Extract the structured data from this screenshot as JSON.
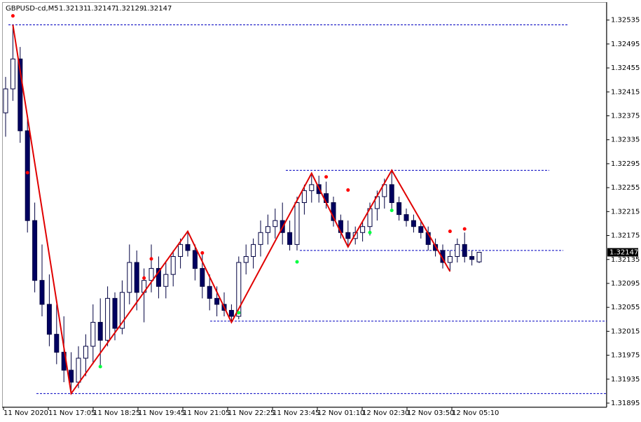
{
  "chart_data": {
    "type": "candlestick",
    "title": "GBPUSD-cd,M5",
    "ylim": [
      1.31888,
      1.32565
    ],
    "yticks": [
      1.32535,
      1.32495,
      1.32455,
      1.32415,
      1.32375,
      1.32335,
      1.32295,
      1.32255,
      1.32215,
      1.32175,
      1.32135,
      1.32095,
      1.32055,
      1.32015,
      1.31975,
      1.31935,
      1.31895
    ],
    "x_labels": [
      "11 Nov 2020",
      "11 Nov 17:05",
      "11 Nov 18:25",
      "11 Nov 19:45",
      "11 Nov 21:05",
      "11 Nov 22:25",
      "11 Nov 23:45",
      "12 Nov 01:10",
      "12 Nov 02:30",
      "12 Nov 03:50",
      "12 Nov 05:10"
    ],
    "bull_color": "#ffffff",
    "bear_color": "#000060",
    "wick_color": "#000040",
    "candles": [
      [
        1.3238,
        1.3244,
        1.3234,
        1.3242
      ],
      [
        1.3242,
        1.32527,
        1.324,
        1.3247
      ],
      [
        1.3247,
        1.3249,
        1.3233,
        1.3235
      ],
      [
        1.3235,
        1.3237,
        1.3218,
        1.322
      ],
      [
        1.322,
        1.3223,
        1.3208,
        1.321
      ],
      [
        1.321,
        1.3216,
        1.3204,
        1.3206
      ],
      [
        1.3206,
        1.3211,
        1.3199,
        1.3201
      ],
      [
        1.3201,
        1.3206,
        1.3196,
        1.3198
      ],
      [
        1.3198,
        1.3204,
        1.3193,
        1.3195
      ],
      [
        1.3195,
        1.3198,
        1.31911,
        1.3193
      ],
      [
        1.3193,
        1.3199,
        1.3192,
        1.3197
      ],
      [
        1.3197,
        1.3201,
        1.3194,
        1.3199
      ],
      [
        1.3199,
        1.3206,
        1.3196,
        1.3203
      ],
      [
        1.3203,
        1.3207,
        1.31956,
        1.32
      ],
      [
        1.32,
        1.3209,
        1.3199,
        1.3207
      ],
      [
        1.3207,
        1.3208,
        1.32,
        1.3202
      ],
      [
        1.3202,
        1.321,
        1.3201,
        1.3208
      ],
      [
        1.3208,
        1.3216,
        1.3206,
        1.3213
      ],
      [
        1.3213,
        1.3215,
        1.3205,
        1.3208
      ],
      [
        1.3208,
        1.3212,
        1.3203,
        1.321
      ],
      [
        1.321,
        1.3216,
        1.3208,
        1.3212
      ],
      [
        1.3212,
        1.3214,
        1.3207,
        1.3209
      ],
      [
        1.3209,
        1.3213,
        1.3207,
        1.3211
      ],
      [
        1.3211,
        1.3215,
        1.3209,
        1.3214
      ],
      [
        1.3214,
        1.3217,
        1.3212,
        1.3216
      ],
      [
        1.3216,
        1.32182,
        1.3214,
        1.3215
      ],
      [
        1.3215,
        1.3216,
        1.321,
        1.3212
      ],
      [
        1.3212,
        1.32146,
        1.3207,
        1.3209
      ],
      [
        1.3209,
        1.3211,
        1.3205,
        1.3207
      ],
      [
        1.3207,
        1.3209,
        1.3204,
        1.3206
      ],
      [
        1.3206,
        1.3208,
        1.3204,
        1.3205
      ],
      [
        1.3205,
        1.3206,
        1.3203,
        1.3204
      ],
      [
        1.3204,
        1.3214,
        1.32035,
        1.3213
      ],
      [
        1.3213,
        1.3216,
        1.3211,
        1.3214
      ],
      [
        1.3214,
        1.3217,
        1.3212,
        1.3216
      ],
      [
        1.3216,
        1.322,
        1.3214,
        1.3218
      ],
      [
        1.3218,
        1.3221,
        1.3216,
        1.3219
      ],
      [
        1.3219,
        1.3222,
        1.3217,
        1.322
      ],
      [
        1.322,
        1.3223,
        1.3216,
        1.3218
      ],
      [
        1.3218,
        1.322,
        1.3215,
        1.3216
      ],
      [
        1.3216,
        1.3224,
        1.3215,
        1.3223
      ],
      [
        1.3223,
        1.3226,
        1.3221,
        1.3225
      ],
      [
        1.3225,
        1.32279,
        1.3223,
        1.3226
      ],
      [
        1.3226,
        1.32275,
        1.3223,
        1.32245
      ],
      [
        1.32245,
        1.32265,
        1.3222,
        1.3223
      ],
      [
        1.3223,
        1.3224,
        1.3219,
        1.322
      ],
      [
        1.322,
        1.3221,
        1.3217,
        1.3218
      ],
      [
        1.3218,
        1.322,
        1.32156,
        1.3217
      ],
      [
        1.3217,
        1.3219,
        1.3216,
        1.3218
      ],
      [
        1.3218,
        1.322,
        1.32165,
        1.3219
      ],
      [
        1.3219,
        1.3223,
        1.32175,
        1.3222
      ],
      [
        1.3222,
        1.3225,
        1.322,
        1.3224
      ],
      [
        1.3224,
        1.3227,
        1.3222,
        1.3226
      ],
      [
        1.3226,
        1.32284,
        1.3222,
        1.3223
      ],
      [
        1.3223,
        1.3224,
        1.322,
        1.3221
      ],
      [
        1.3221,
        1.3222,
        1.3219,
        1.322
      ],
      [
        1.322,
        1.3221,
        1.3218,
        1.3219
      ],
      [
        1.3219,
        1.322,
        1.3217,
        1.3218
      ],
      [
        1.3218,
        1.3219,
        1.3215,
        1.3216
      ],
      [
        1.3216,
        1.3217,
        1.3214,
        1.3215
      ],
      [
        1.3215,
        1.3216,
        1.3212,
        1.3213
      ],
      [
        1.3213,
        1.3215,
        1.32115,
        1.3214
      ],
      [
        1.3214,
        1.3217,
        1.3213,
        1.3216
      ],
      [
        1.3216,
        1.3218,
        1.3213,
        1.3214
      ],
      [
        1.3214,
        1.3215,
        1.32125,
        1.32135
      ],
      [
        1.32131,
        1.32147,
        1.32129,
        1.32147
      ]
    ],
    "zigzag": {
      "color": "#e00000",
      "x": [
        1,
        9,
        25,
        31,
        42,
        47,
        53,
        61
      ],
      "values": [
        1.32527,
        1.31911,
        1.32182,
        1.3203,
        1.32279,
        1.32156,
        1.32284,
        1.32115
      ]
    },
    "fractals_up": {
      "color": "#ff0000",
      "x": [
        1,
        3,
        19,
        20,
        27,
        44,
        47,
        61,
        63
      ],
      "values": [
        1.32542,
        1.3228,
        1.32104,
        1.32136,
        1.32146,
        1.32273,
        1.32251,
        1.32182,
        1.32186
      ]
    },
    "fractals_down": {
      "color": "#00ff40",
      "x": [
        13,
        32,
        40,
        50,
        53
      ],
      "values": [
        1.31956,
        1.32046,
        1.32131,
        1.3218,
        1.32217
      ]
    },
    "levels": {
      "color": "#0000c0",
      "values": [
        1.32527,
        1.32284,
        1.3215,
        1.32032,
        1.31911
      ]
    }
  }
}
